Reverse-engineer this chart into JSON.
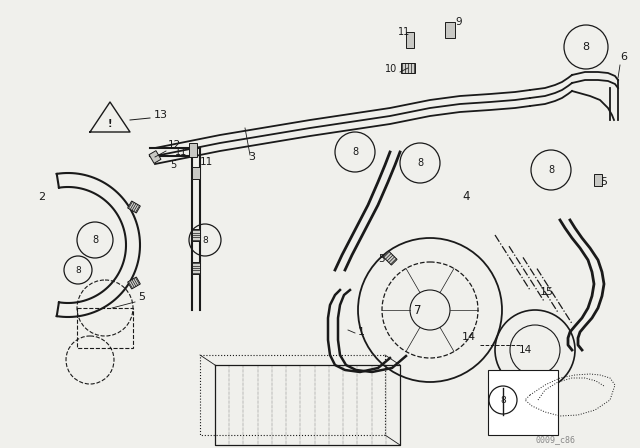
{
  "bg_color": "#f0f0ec",
  "line_color": "#1a1a1a",
  "watermark": "0009_c86",
  "fig_w": 6.4,
  "fig_h": 4.48,
  "dpi": 100
}
